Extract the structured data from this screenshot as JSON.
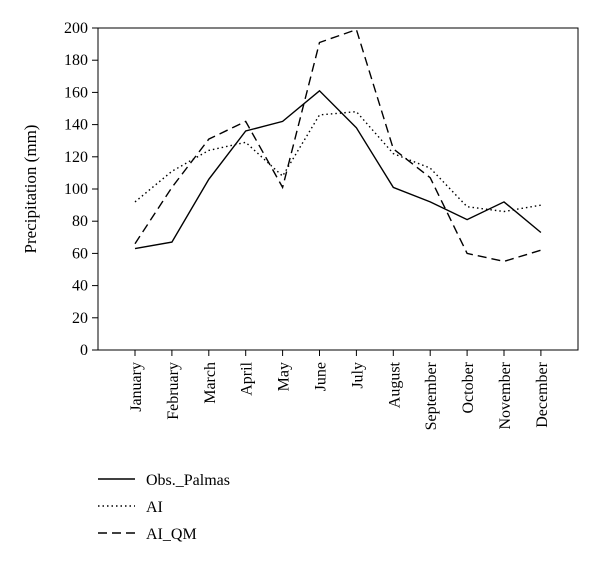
{
  "chart_data": {
    "type": "line",
    "categories": [
      "January",
      "February",
      "March",
      "April",
      "May",
      "June",
      "July",
      "August",
      "September",
      "October",
      "November",
      "December"
    ],
    "ylabel": "Precipitation (mm)",
    "ylim": [
      0,
      200
    ],
    "yticks": [
      0,
      20,
      40,
      60,
      80,
      100,
      120,
      140,
      160,
      180,
      200
    ],
    "grid": false,
    "legend_position": "bottom-left",
    "series": [
      {
        "name": "Obs._Palmas",
        "style": "solid",
        "color": "#000000",
        "values": [
          63,
          67,
          106,
          136,
          142,
          161,
          138,
          101,
          92,
          81,
          92,
          73
        ]
      },
      {
        "name": "AI",
        "style": "dotted",
        "color": "#000000",
        "values": [
          92,
          111,
          124,
          129,
          108,
          146,
          148,
          122,
          113,
          89,
          86,
          90
        ]
      },
      {
        "name": "AI_QM",
        "style": "dashed",
        "color": "#000000",
        "values": [
          66,
          101,
          131,
          142,
          101,
          191,
          199,
          125,
          107,
          60,
          55,
          62
        ]
      }
    ]
  }
}
